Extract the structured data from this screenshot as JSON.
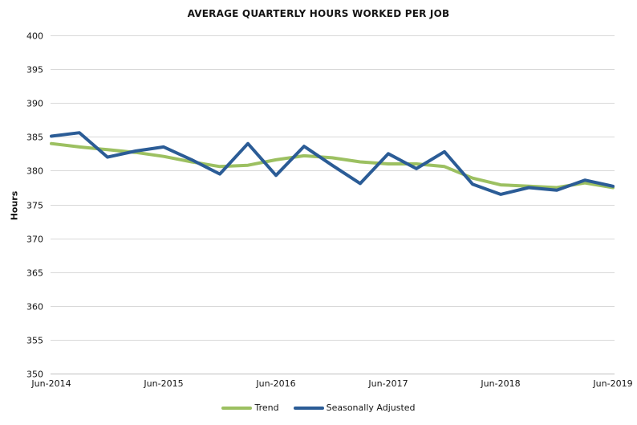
{
  "title": "AVERAGE QUARTERLY HOURS WORKED PER JOB",
  "colors": {
    "trend": "#9CC061",
    "seasonally_adjusted": "#2B5C96",
    "gridline": "#D9D9D9",
    "axis_line": "#BFBFBF",
    "text": "#141414",
    "background": "#FFFFFF"
  },
  "legend": {
    "items": [
      {
        "label": "Trend"
      },
      {
        "label": "Seasonally Adjusted"
      }
    ]
  },
  "chart_data": {
    "type": "line",
    "title": "AVERAGE QUARTERLY HOURS WORKED PER JOB",
    "xlabel": "",
    "ylabel": "Hours",
    "ylim": [
      350,
      400
    ],
    "ytick_step": 5,
    "ytick_labels": [
      "350",
      "355",
      "360",
      "365",
      "370",
      "375",
      "380",
      "385",
      "390",
      "395",
      "400"
    ],
    "grid": "horizontal",
    "legend_position": "bottom",
    "x_labels": [
      "Jun-2014",
      "Sep-2014",
      "Dec-2014",
      "Mar-2015",
      "Jun-2015",
      "Sep-2015",
      "Dec-2015",
      "Mar-2016",
      "Jun-2016",
      "Sep-2016",
      "Dec-2016",
      "Mar-2017",
      "Jun-2017",
      "Sep-2017",
      "Dec-2017",
      "Mar-2018",
      "Jun-2018",
      "Sep-2018",
      "Dec-2018",
      "Mar-2019",
      "Jun-2019"
    ],
    "x_tick_shown_every": 4,
    "x_tick_labels": [
      "Jun-2014",
      "Jun-2015",
      "Jun-2016",
      "Jun-2017",
      "Jun-2018",
      "Jun-2019"
    ],
    "series": [
      {
        "name": "Trend",
        "color": "#9CC061",
        "values": [
          384.0,
          383.5,
          383.1,
          382.7,
          382.1,
          381.3,
          380.6,
          380.8,
          381.6,
          382.2,
          381.9,
          381.3,
          381.0,
          381.0,
          380.6,
          378.9,
          377.9,
          377.7,
          377.5,
          378.2,
          377.5
        ]
      },
      {
        "name": "Seasonally Adjusted",
        "color": "#2B5C96",
        "values": [
          385.1,
          385.6,
          382.0,
          382.9,
          383.5,
          381.6,
          379.5,
          384.0,
          379.3,
          383.6,
          380.8,
          378.1,
          382.5,
          380.3,
          382.8,
          378.0,
          376.5,
          377.5,
          377.1,
          378.6,
          377.7
        ]
      }
    ]
  }
}
